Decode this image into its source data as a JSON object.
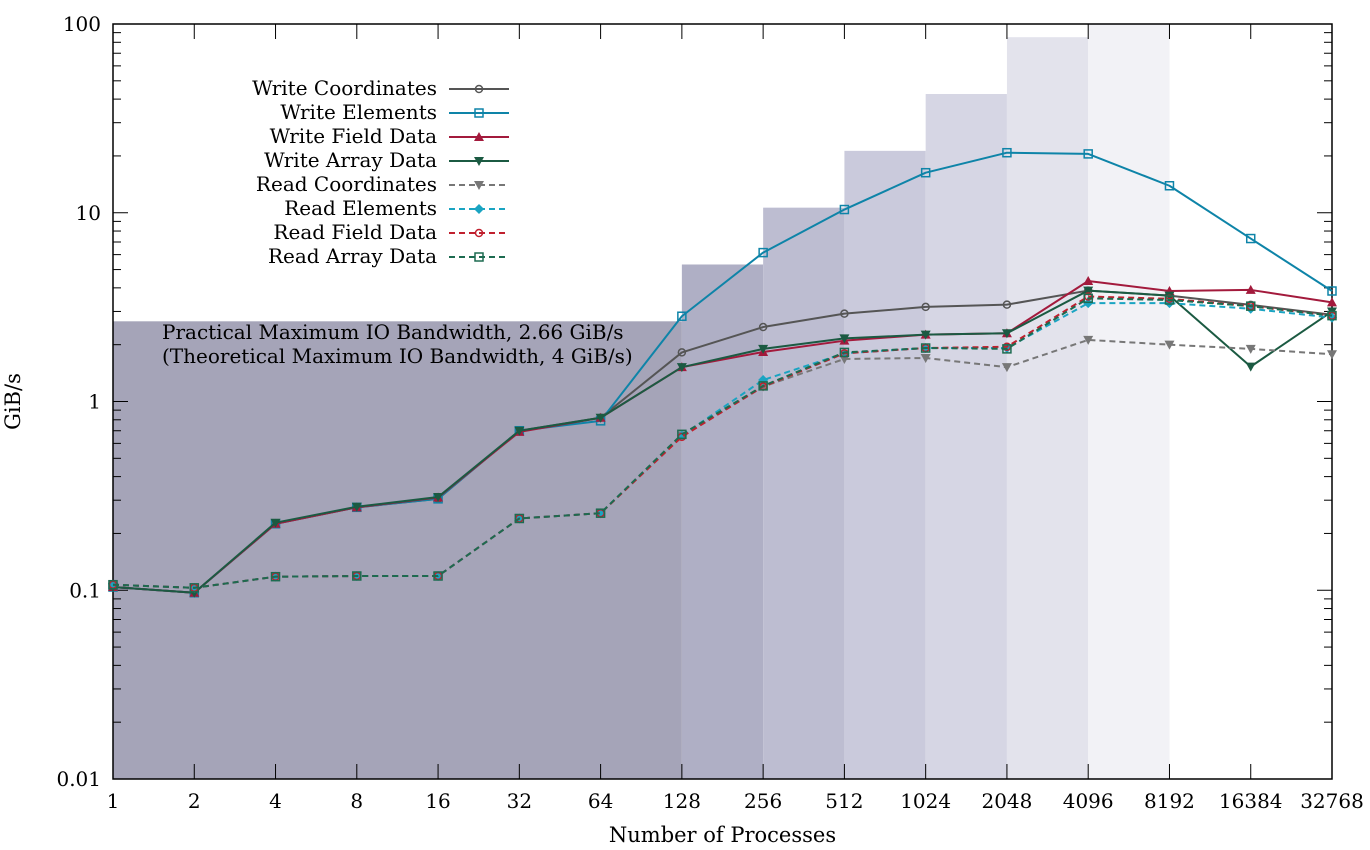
{
  "chart_data": {
    "type": "line",
    "x": [
      "1",
      "2",
      "4",
      "8",
      "16",
      "32",
      "64",
      "128",
      "256",
      "512",
      "1024",
      "2048",
      "4096",
      "8192",
      "16384",
      "32768"
    ],
    "xlabel": "Number of Processes",
    "ylabel": "GiB/s",
    "yscale": "log",
    "ylim": [
      0.01,
      100
    ],
    "yticks": [
      "0.01",
      "0.1",
      "1",
      "10",
      "100"
    ],
    "grid": false,
    "legend_position": "top-left",
    "annotations": [
      "Practical Maximum IO Bandwidth, 2.66 GiB/s",
      "(Theoretical Maximum IO Bandwidth, 4 GiB/s)"
    ],
    "bandwidth_regions": [
      {
        "x_from": "1",
        "x_to": "128",
        "value": 2.66,
        "color": "#a5a4b8"
      },
      {
        "x_from": "128",
        "x_to": "256",
        "value": 5.32,
        "color": "#afafc5"
      },
      {
        "x_from": "256",
        "x_to": "512",
        "value": 10.64,
        "color": "#bdbdd1"
      },
      {
        "x_from": "512",
        "x_to": "1024",
        "value": 21.28,
        "color": "#cacadc"
      },
      {
        "x_from": "1024",
        "x_to": "2048",
        "value": 42.56,
        "color": "#d6d6e4"
      },
      {
        "x_from": "2048",
        "x_to": "4096",
        "value": 85.12,
        "color": "#e3e3ec"
      },
      {
        "x_from": "4096",
        "x_to": "8192",
        "value": 100,
        "color": "#f2f2f6"
      }
    ],
    "series": [
      {
        "name": "Write Coordinates",
        "color": "#555555",
        "dash": false,
        "marker": "circle-open",
        "values": [
          0.104,
          0.097,
          0.225,
          0.275,
          0.305,
          0.7,
          0.82,
          1.82,
          2.48,
          2.92,
          3.17,
          3.26,
          3.87,
          3.64,
          3.25,
          2.88
        ]
      },
      {
        "name": "Write Elements",
        "color": "#0e84a8",
        "dash": false,
        "marker": "square-open",
        "values": [
          0.104,
          0.097,
          0.225,
          0.275,
          0.305,
          0.7,
          0.79,
          2.83,
          6.15,
          10.4,
          16.3,
          20.8,
          20.5,
          13.9,
          7.3,
          3.85
        ]
      },
      {
        "name": "Write Field Data",
        "color": "#a31a3c",
        "dash": false,
        "marker": "triangle-up",
        "values": [
          0.104,
          0.097,
          0.225,
          0.275,
          0.31,
          0.69,
          0.82,
          1.52,
          1.83,
          2.1,
          2.26,
          2.3,
          4.35,
          3.85,
          3.9,
          3.35
        ]
      },
      {
        "name": "Write Array Data",
        "color": "#1b5a42",
        "dash": false,
        "marker": "triangle-down",
        "values": [
          0.104,
          0.097,
          0.228,
          0.277,
          0.312,
          0.7,
          0.82,
          1.52,
          1.9,
          2.16,
          2.26,
          2.3,
          3.87,
          3.64,
          1.53,
          3.0
        ]
      },
      {
        "name": "Read Coordinates",
        "color": "#777777",
        "dash": true,
        "marker": "triangle-down",
        "values": [
          0.107,
          0.103,
          0.118,
          0.119,
          0.119,
          0.24,
          0.256,
          0.66,
          1.2,
          1.68,
          1.7,
          1.52,
          2.12,
          2.0,
          1.9,
          1.78
        ]
      },
      {
        "name": "Read Elements",
        "color": "#1aa4c2",
        "dash": true,
        "marker": "diamond",
        "values": [
          0.107,
          0.103,
          0.118,
          0.119,
          0.119,
          0.24,
          0.256,
          0.66,
          1.3,
          1.8,
          1.92,
          1.92,
          3.32,
          3.32,
          3.1,
          2.78
        ]
      },
      {
        "name": "Read Field Data",
        "color": "#c0202e",
        "dash": true,
        "marker": "circle-open",
        "values": [
          0.107,
          0.103,
          0.118,
          0.119,
          0.119,
          0.24,
          0.256,
          0.65,
          1.2,
          1.8,
          1.92,
          1.95,
          3.6,
          3.5,
          3.2,
          2.85
        ]
      },
      {
        "name": "Read Array Data",
        "color": "#1d6b50",
        "dash": true,
        "marker": "square-open",
        "values": [
          0.107,
          0.103,
          0.118,
          0.119,
          0.119,
          0.24,
          0.256,
          0.67,
          1.21,
          1.82,
          1.92,
          1.9,
          3.52,
          3.45,
          3.2,
          2.85
        ]
      }
    ]
  }
}
